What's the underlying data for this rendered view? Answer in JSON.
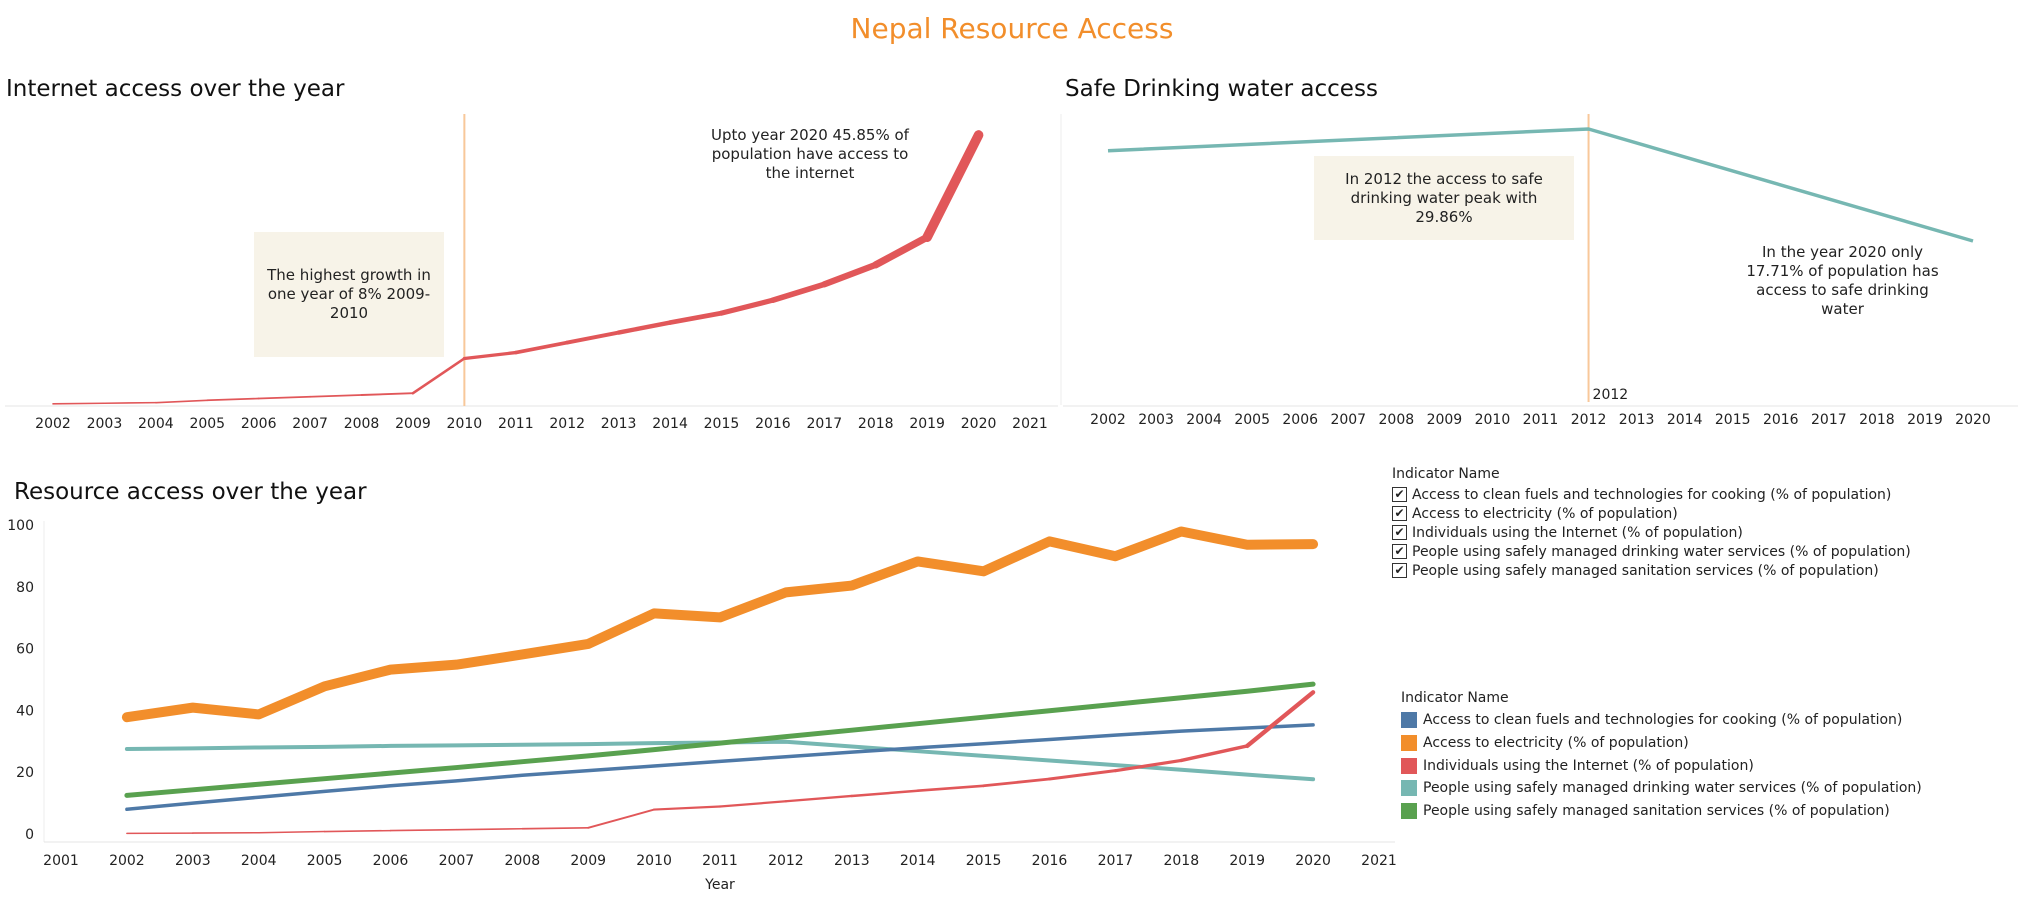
{
  "dashboard_title": "Nepal Resource Access",
  "colors": {
    "title": "#f28e2b",
    "clean_fuels": "#4e79a7",
    "electricity": "#f28e2b",
    "internet": "#e15759",
    "drinking_water": "#76b7b2",
    "sanitation": "#59a14f",
    "reference_line": "#f8c89a",
    "annotation_fill": "#f7f3e8"
  },
  "chart_data": [
    {
      "id": "internet",
      "type": "line",
      "title": "Internet access over the year",
      "x_ticks": [
        "2002",
        "2003",
        "2004",
        "2005",
        "2006",
        "2007",
        "2008",
        "2009",
        "2010",
        "2011",
        "2012",
        "2013",
        "2014",
        "2015",
        "2016",
        "2017",
        "2018",
        "2019",
        "2020",
        "2021"
      ],
      "reference_line": {
        "x": 2010
      },
      "series": [
        {
          "key": "internet",
          "x": [
            2002,
            2003,
            2004,
            2005,
            2006,
            2007,
            2008,
            2009,
            2010,
            2011,
            2012,
            2013,
            2014,
            2015,
            2016,
            2017,
            2018,
            2019,
            2020
          ],
          "values": [
            0.2,
            0.3,
            0.4,
            0.8,
            1.1,
            1.4,
            1.7,
            2.0,
            7.9,
            8.9,
            10.6,
            12.3,
            14.0,
            15.6,
            17.8,
            20.5,
            23.8,
            28.5,
            45.85
          ]
        }
      ],
      "annotations": [
        {
          "key": "growth_note",
          "text": "The highest growth in one year of 8% 2009-2010"
        },
        {
          "key": "end_note",
          "text": "Upto year 2020 45.85% of population have access to the internet"
        }
      ]
    },
    {
      "id": "water",
      "type": "line",
      "title": "Safe Drinking water access",
      "x_ticks": [
        "2002",
        "2003",
        "2004",
        "2005",
        "2006",
        "2007",
        "2008",
        "2009",
        "2010",
        "2011",
        "2012",
        "2013",
        "2014",
        "2015",
        "2016",
        "2017",
        "2018",
        "2019",
        "2020"
      ],
      "reference_line": {
        "x": 2012,
        "label": "2012"
      },
      "series": [
        {
          "key": "drinking_water",
          "x": [
            2002,
            2012,
            2020
          ],
          "values": [
            27.5,
            29.86,
            17.71
          ]
        }
      ],
      "annotations": [
        {
          "key": "peak_note",
          "text": "In 2012 the access to safe drinking water peak with 29.86%"
        },
        {
          "key": "end_note",
          "text": "In the year 2020 only 17.71% of population has access to safe drinking water"
        }
      ]
    },
    {
      "id": "resources",
      "type": "line",
      "title": "Resource access over the year",
      "xlabel": "Year",
      "x_ticks": [
        "2001",
        "2002",
        "2003",
        "2004",
        "2005",
        "2006",
        "2007",
        "2008",
        "2009",
        "2010",
        "2011",
        "2012",
        "2013",
        "2014",
        "2015",
        "2016",
        "2017",
        "2018",
        "2019",
        "2020",
        "2021"
      ],
      "y_ticks": [
        "0",
        "20",
        "40",
        "60",
        "80",
        "100"
      ],
      "ylim": [
        0,
        100
      ],
      "x": [
        2002,
        2003,
        2004,
        2005,
        2006,
        2007,
        2008,
        2009,
        2010,
        2011,
        2012,
        2013,
        2014,
        2015,
        2016,
        2017,
        2018,
        2019,
        2020
      ],
      "series": [
        {
          "key": "clean_fuels",
          "name": "Access to clean fuels and technologies for cooking (% of population)",
          "values": [
            8.0,
            10.0,
            11.9,
            13.8,
            15.6,
            17.2,
            19.0,
            20.5,
            22.0,
            23.5,
            25.0,
            26.5,
            27.9,
            29.2,
            30.6,
            32.0,
            33.3,
            34.3,
            35.3
          ]
        },
        {
          "key": "electricity",
          "name": "Access to electricity (% of population)",
          "values": [
            37.8,
            40.9,
            38.7,
            47.8,
            53.2,
            54.8,
            58.1,
            61.5,
            71.4,
            70.1,
            78.2,
            80.4,
            88.2,
            85.0,
            94.7,
            89.9,
            97.9,
            93.6,
            93.8
          ]
        },
        {
          "key": "internet",
          "name": "Individuals using the Internet (% of population)",
          "values": [
            0.2,
            0.3,
            0.4,
            0.8,
            1.1,
            1.4,
            1.7,
            2.0,
            7.9,
            8.9,
            10.6,
            12.3,
            14.0,
            15.6,
            17.8,
            20.5,
            23.8,
            28.5,
            45.85
          ]
        },
        {
          "key": "drinking_water",
          "name": "People using safely managed drinking water services (% of population)",
          "values": [
            27.5,
            27.7,
            28.0,
            28.2,
            28.5,
            28.7,
            28.9,
            29.1,
            29.4,
            29.6,
            29.86,
            28.3,
            26.8,
            25.3,
            23.8,
            22.3,
            20.8,
            19.2,
            17.71
          ]
        },
        {
          "key": "sanitation",
          "name": "People using safely managed sanitation services (% of population)",
          "values": [
            12.5,
            14.3,
            16.1,
            17.9,
            19.7,
            21.5,
            23.4,
            25.3,
            27.3,
            29.4,
            31.5,
            33.6,
            35.7,
            37.8,
            39.9,
            42.0,
            44.1,
            46.2,
            48.5
          ]
        }
      ]
    }
  ],
  "filter_legend": {
    "title": "Indicator Name",
    "check_glyph": "✔",
    "items": [
      "Access to clean fuels and technologies for cooking (% of population)",
      "Access to electricity (% of population)",
      "Individuals using the Internet (% of population)",
      "People using safely managed drinking water services (% of population)",
      "People using safely managed sanitation services (% of population)"
    ]
  },
  "color_legend": {
    "title": "Indicator Name",
    "items": [
      {
        "key": "clean_fuels",
        "label": "Access to clean fuels and technologies for cooking (% of population)"
      },
      {
        "key": "electricity",
        "label": "Access to electricity (% of population)"
      },
      {
        "key": "internet",
        "label": "Individuals using the Internet (% of population)"
      },
      {
        "key": "drinking_water",
        "label": "People using safely managed drinking water services (% of population)"
      },
      {
        "key": "sanitation",
        "label": "People using safely managed sanitation services (% of population)"
      }
    ]
  }
}
